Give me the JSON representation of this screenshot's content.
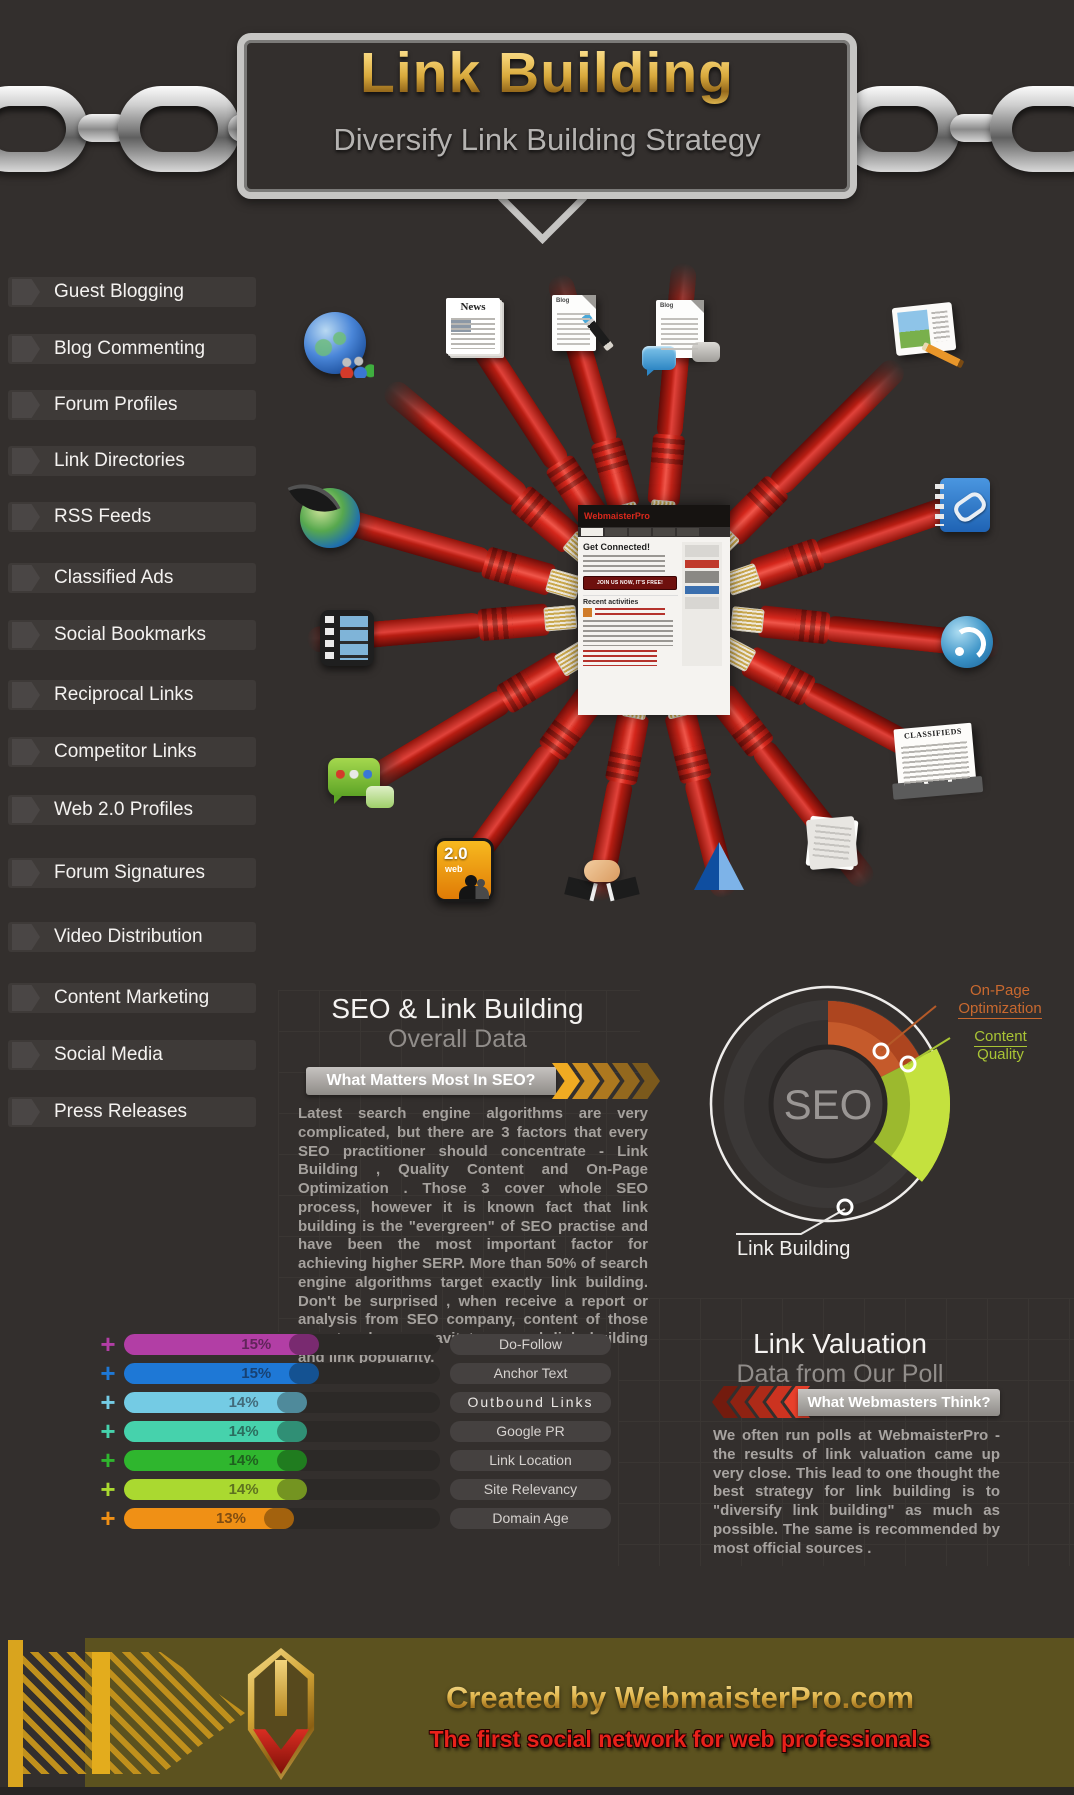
{
  "page": {
    "title": "Link Building",
    "subtitle": "Diversify Link Building Strategy"
  },
  "sidebar": {
    "items": [
      "Guest Blogging",
      "Blog Commenting",
      "Forum Profiles",
      "Link Directories",
      "RSS Feeds",
      "Classified Ads",
      "Social Bookmarks",
      "Reciprocal Links",
      "Competitor Links",
      "Web 2.0 Profiles",
      "Forum Signatures",
      "Video Distribution",
      "Content Marketing",
      "Social Media",
      "Press Releases"
    ]
  },
  "hub": {
    "website": {
      "logo": "WebmaisterPro",
      "heading": "Get Connected!",
      "cta": "JOIN US NOW, IT'S FREE!",
      "section": "Recent activities"
    },
    "icon_texts": {
      "news": "News",
      "blog": "Blog",
      "web20_top": "2.0",
      "web20_bottom": "web",
      "classifieds": "CLASSIFIEDS"
    },
    "icons": [
      "globe-community-icon",
      "news-icon",
      "blog-writing-icon",
      "blog-comments-icon",
      "photo-submission-icon",
      "quill-globe-icon",
      "link-directory-book-icon",
      "video-film-strip-icon",
      "rss-icon",
      "chat-bubbles-icon",
      "classified-ads-icon",
      "web20-badge-icon",
      "handshake-icon",
      "delta-logo-icon",
      "press-notes-icon"
    ]
  },
  "seo_section": {
    "title": "SEO & Link Building",
    "subtitle": "Overall Data",
    "banner": "What Matters Most In SEO?",
    "body": "Latest search engine algorithms are very complicated, but there are 3 factors that every SEO practitioner should concentrate - Link Building , Quality Content and On-Page Optimization . Those 3 cover whole SEO process, however it is known fact that link building is the \"evergreen\" of SEO practise and have been the most important factor for achieving higher SERP. More than 50% of search engine algorithms target exactly link building. Don't be surprised , when receive a report or analysis from SEO company, content of those reports always gravitate around link building and link popularity."
  },
  "valuation_section": {
    "title": "Link Valuation",
    "subtitle": "Data from Our Poll",
    "banner": "What Webmasters Think?",
    "body": "We often run polls at WebmaisterPro - the results of link valuation came up very close. This lead to one thought the best strategy for link building is to \"diversify link building\" as much as possible. The same is recommended by most official sources ."
  },
  "chart_data": [
    {
      "type": "pie",
      "variant": "donut-gauge",
      "center_label": "SEO",
      "labels": [
        "On-Page Optimization",
        "Content Quality",
        "Link Building"
      ],
      "labels_split": [
        [
          "On-Page",
          "Optimization"
        ],
        [
          "Content",
          "Quality"
        ]
      ],
      "values": [
        17.5,
        18.5,
        64
      ],
      "unit": "percent of SEO weight (estimated from arc angles; no numeric labels shown)",
      "colors": [
        "#c55a2b",
        "#9cb92e",
        "#3b3837"
      ],
      "outer_band": [
        "#ad451f",
        "#c4e13e"
      ],
      "label_colors": [
        "#c9692f",
        "#a9c435",
        "#ffffff"
      ],
      "legend_position": "callout labels with leader lines"
    },
    {
      "type": "bar",
      "orientation": "horizontal",
      "title": "Link Valuation Poll",
      "categories": [
        "Do-Follow",
        "Anchor Text",
        "Outbound Links",
        "Google PR",
        "Link Location",
        "Site Relevancy",
        "Domain Age"
      ],
      "values": [
        15,
        15,
        14,
        14,
        14,
        14,
        13
      ],
      "percent_labels": [
        "15%",
        "15%",
        "14%",
        "14%",
        "14%",
        "14%",
        "13%"
      ],
      "colors": [
        "#b23ea5",
        "#1e78d6",
        "#74cbe4",
        "#46d2ac",
        "#2fb62e",
        "#aad930",
        "#f09015"
      ],
      "xlim": [
        0,
        26
      ],
      "gridlines": false
    }
  ],
  "footer": {
    "line1": "Created by WebmaisterPro.com",
    "line2": "The first social network for web professionals"
  },
  "theme": {
    "background": "#332f2d",
    "panel_grid": "#3a3633",
    "gold": "#d9a51e",
    "banner_gray": "#a8a5a1",
    "red_accent": "#d93425",
    "olive_footer": "#5c521f",
    "cable_red": "#c0271c"
  }
}
